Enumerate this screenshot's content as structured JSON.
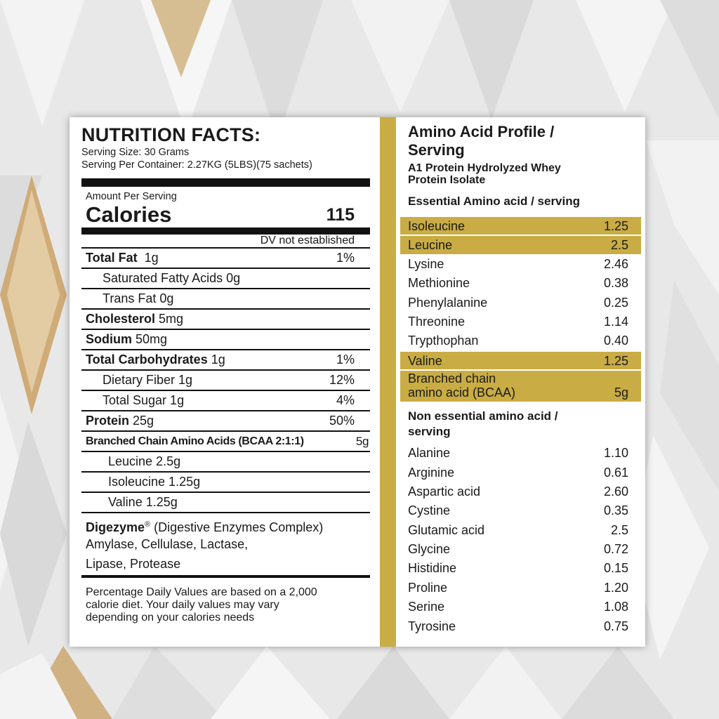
{
  "nutrition": {
    "title": "NUTRITION FACTS:",
    "serving_size": "Serving Size: 30 Grams",
    "serving_per_container": "Serving Per Container: 2.27KG (5LBS)(75 sachets)",
    "amount_per_serving": "Amount Per Serving",
    "calories_label": "Calories",
    "calories_value": "115",
    "dv_note": "DV not established",
    "rows": [
      {
        "bold": "Total Fat",
        "text": "  1g",
        "dv": "1%"
      },
      {
        "bold": "",
        "text": "Saturated Fatty Acids 0g",
        "dv": ""
      },
      {
        "bold": "",
        "text": "Trans Fat 0g",
        "dv": ""
      },
      {
        "bold": "Cholesterol",
        "text": " 5mg",
        "dv": ""
      },
      {
        "bold": "Sodium",
        "text": " 50mg",
        "dv": ""
      },
      {
        "bold": "Total Carbohydrates",
        "text": " 1g",
        "dv": "1%"
      },
      {
        "bold": "",
        "text": "Dietary Fiber 1g",
        "dv": "12%"
      },
      {
        "bold": "",
        "text": "Total Sugar 1g",
        "dv": "4%"
      },
      {
        "bold": "Protein",
        "text": " 25g",
        "dv": "50%"
      },
      {
        "bold": "Branched Chain Amino Acids (BCAA 2:1:1)",
        "text": "",
        "dv": "5g"
      },
      {
        "bold": "",
        "text": "Leucine 2.5g",
        "dv": ""
      },
      {
        "bold": "",
        "text": "Isoleucine 1.25g",
        "dv": ""
      },
      {
        "bold": "",
        "text": "Valine 1.25g",
        "dv": ""
      }
    ],
    "digezyme_bold": "Digezyme",
    "digezyme_reg": "®",
    "digezyme_rest": " (Digestive Enzymes Complex)",
    "enzymes_line1": "Amylase, Cellulase, Lactase,",
    "enzymes_line2": "Lipase, Protease",
    "footnote_line1": "Percentage Daily Values are based on a 2,000",
    "footnote_line2": "calorie diet. Your daily values may vary",
    "footnote_line3": "depending on your calories needs"
  },
  "amino": {
    "title_line1": "Amino Acid Profile /",
    "title_line2": "Serving",
    "product_line1": "A1 Protein Hydrolyzed Whey",
    "product_line2": "Protein Isolate",
    "essential_heading": "Essential Amino acid / serving",
    "essential": [
      {
        "name": "Isoleucine",
        "value": "1.25",
        "highlight": true
      },
      {
        "name": "Leucine",
        "value": "2.5",
        "highlight": true
      },
      {
        "name": "Lysine",
        "value": "2.46",
        "highlight": false
      },
      {
        "name": "Methionine",
        "value": "0.38",
        "highlight": false
      },
      {
        "name": "Phenylalanine",
        "value": "0.25",
        "highlight": false
      },
      {
        "name": "Threonine",
        "value": "1.14",
        "highlight": false
      },
      {
        "name": "Trypthophan",
        "value": "0.40",
        "highlight": false
      },
      {
        "name": "Valine",
        "value": "1.25",
        "highlight": true
      }
    ],
    "bcaa_line1": "Branched chain",
    "bcaa_line2": "amino acid (BCAA)",
    "bcaa_value": "5g",
    "nonessential_heading_line1": "Non essential amino acid /",
    "nonessential_heading_line2": "serving",
    "nonessential": [
      {
        "name": "Alanine",
        "value": "1.10"
      },
      {
        "name": "Arginine",
        "value": "0.61"
      },
      {
        "name": "Aspartic acid",
        "value": "2.60"
      },
      {
        "name": "Cystine",
        "value": "0.35"
      },
      {
        "name": "Glutamic acid",
        "value": "2.5"
      },
      {
        "name": "Glycine",
        "value": "0.72"
      },
      {
        "name": "Histidine",
        "value": "0.15"
      },
      {
        "name": "Proline",
        "value": "1.20"
      },
      {
        "name": "Serine",
        "value": "1.08"
      },
      {
        "name": "Tyrosine",
        "value": "0.75"
      }
    ]
  },
  "colors": {
    "gold": "#c9ac44",
    "background": "#e6e6e6",
    "text": "#1a1a1a"
  }
}
